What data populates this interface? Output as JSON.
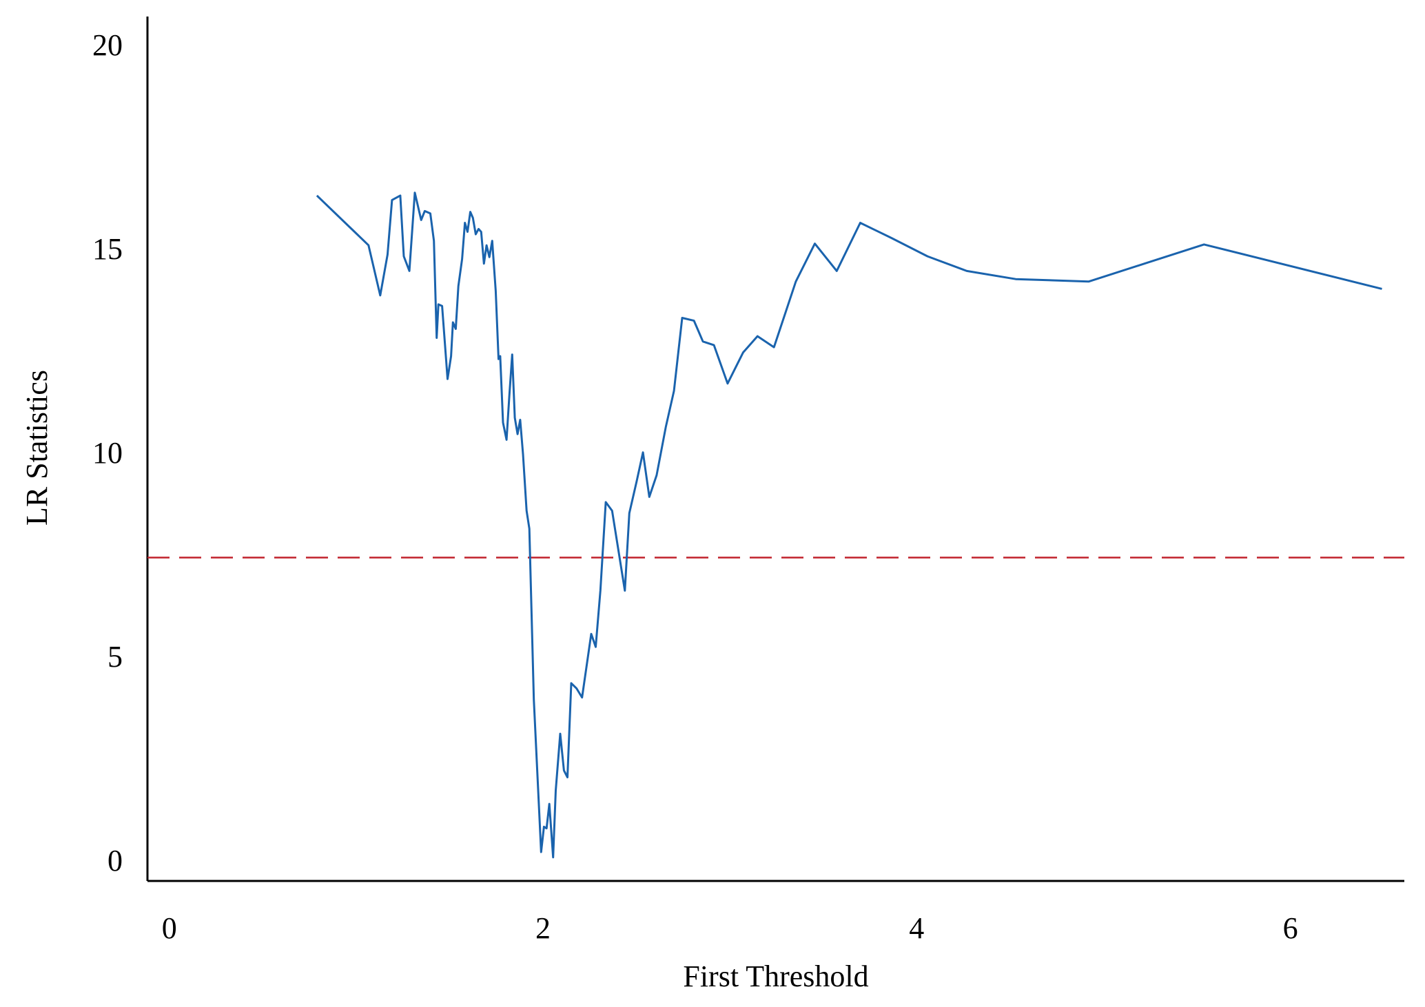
{
  "chart_data": {
    "type": "line",
    "x_label": "First Threshold",
    "y_label": "LR Statistics",
    "xlim": [
      -0.117,
      6.61
    ],
    "ylim": [
      -0.51,
      20.69
    ],
    "xticks": [
      0,
      2,
      4,
      6
    ],
    "yticks": [
      0,
      5,
      10,
      15,
      20
    ],
    "reference_line": {
      "value": 7.42,
      "color": "#c0202a",
      "style": "dashed"
    },
    "series": [
      {
        "name": "LR",
        "color": "#1a63ad",
        "x": [
          0.79,
          1.066,
          1.129,
          1.168,
          1.192,
          1.236,
          1.255,
          1.285,
          1.314,
          1.348,
          1.367,
          1.397,
          1.416,
          1.431,
          1.44,
          1.46,
          1.489,
          1.508,
          1.518,
          1.533,
          1.547,
          1.567,
          1.582,
          1.596,
          1.611,
          1.625,
          1.64,
          1.655,
          1.669,
          1.684,
          1.698,
          1.713,
          1.728,
          1.747,
          1.762,
          1.771,
          1.786,
          1.805,
          1.82,
          1.835,
          1.849,
          1.864,
          1.878,
          1.893,
          1.912,
          1.927,
          1.951,
          1.99,
          2.005,
          2.019,
          2.034,
          2.054,
          2.068,
          2.092,
          2.112,
          2.131,
          2.151,
          2.18,
          2.209,
          2.258,
          2.282,
          2.307,
          2.336,
          2.37,
          2.438,
          2.462,
          2.501,
          2.535,
          2.569,
          2.608,
          2.657,
          2.701,
          2.745,
          2.808,
          2.856,
          2.915,
          2.988,
          3.071,
          3.148,
          3.236,
          3.353,
          3.455,
          3.572,
          3.698,
          3.864,
          4.058,
          4.268,
          4.53,
          4.92,
          5.538,
          6.49
        ],
        "values": [
          16.3,
          15.08,
          13.85,
          14.85,
          16.19,
          16.3,
          14.81,
          14.45,
          16.37,
          15.7,
          15.92,
          15.86,
          15.19,
          12.81,
          13.63,
          13.59,
          11.8,
          12.36,
          13.19,
          13.03,
          14.08,
          14.74,
          15.63,
          15.41,
          15.9,
          15.75,
          15.35,
          15.48,
          15.41,
          14.63,
          15.08,
          14.79,
          15.19,
          13.96,
          12.29,
          12.36,
          10.73,
          10.31,
          11.4,
          12.4,
          10.85,
          10.45,
          10.8,
          9.96,
          8.57,
          8.13,
          3.94,
          0.2,
          0.82,
          0.78,
          1.38,
          0.07,
          1.71,
          3.1,
          2.2,
          2.03,
          4.34,
          4.21,
          3.99,
          5.55,
          5.23,
          6.61,
          8.78,
          8.57,
          6.61,
          8.51,
          9.29,
          10.0,
          8.91,
          9.44,
          10.62,
          11.51,
          13.3,
          13.23,
          12.72,
          12.63,
          11.69,
          12.45,
          12.85,
          12.58,
          14.19,
          15.12,
          14.45,
          15.63,
          15.26,
          14.81,
          14.45,
          14.25,
          14.19,
          15.1,
          14.01
        ]
      }
    ]
  }
}
